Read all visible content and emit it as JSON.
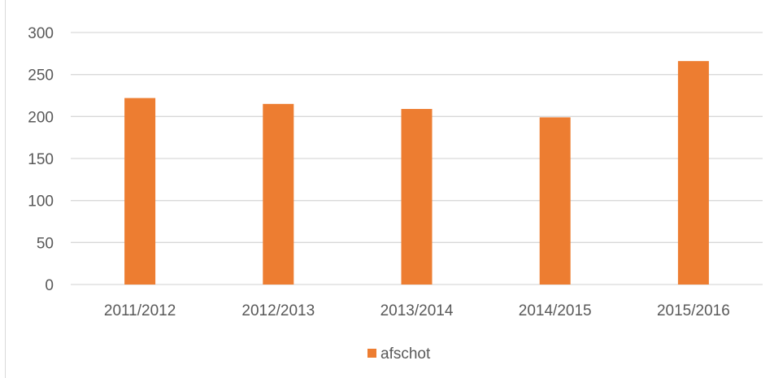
{
  "chart_data": {
    "type": "bar",
    "categories": [
      "2011/2012",
      "2012/2013",
      "2013/2014",
      "2014/2015",
      "2015/2016"
    ],
    "series": [
      {
        "name": "afschot",
        "values": [
          222,
          215,
          209,
          199,
          266
        ],
        "color": "#ed7d31"
      }
    ],
    "ylim": [
      0,
      300
    ],
    "yticks": [
      0,
      50,
      100,
      150,
      200,
      250,
      300
    ],
    "grid": true,
    "legend": "bottom",
    "title": "",
    "xlabel": "",
    "ylabel": ""
  },
  "colors": {
    "bar": "#ed7d31",
    "grid": "#d9d9d9",
    "text": "#595959"
  }
}
